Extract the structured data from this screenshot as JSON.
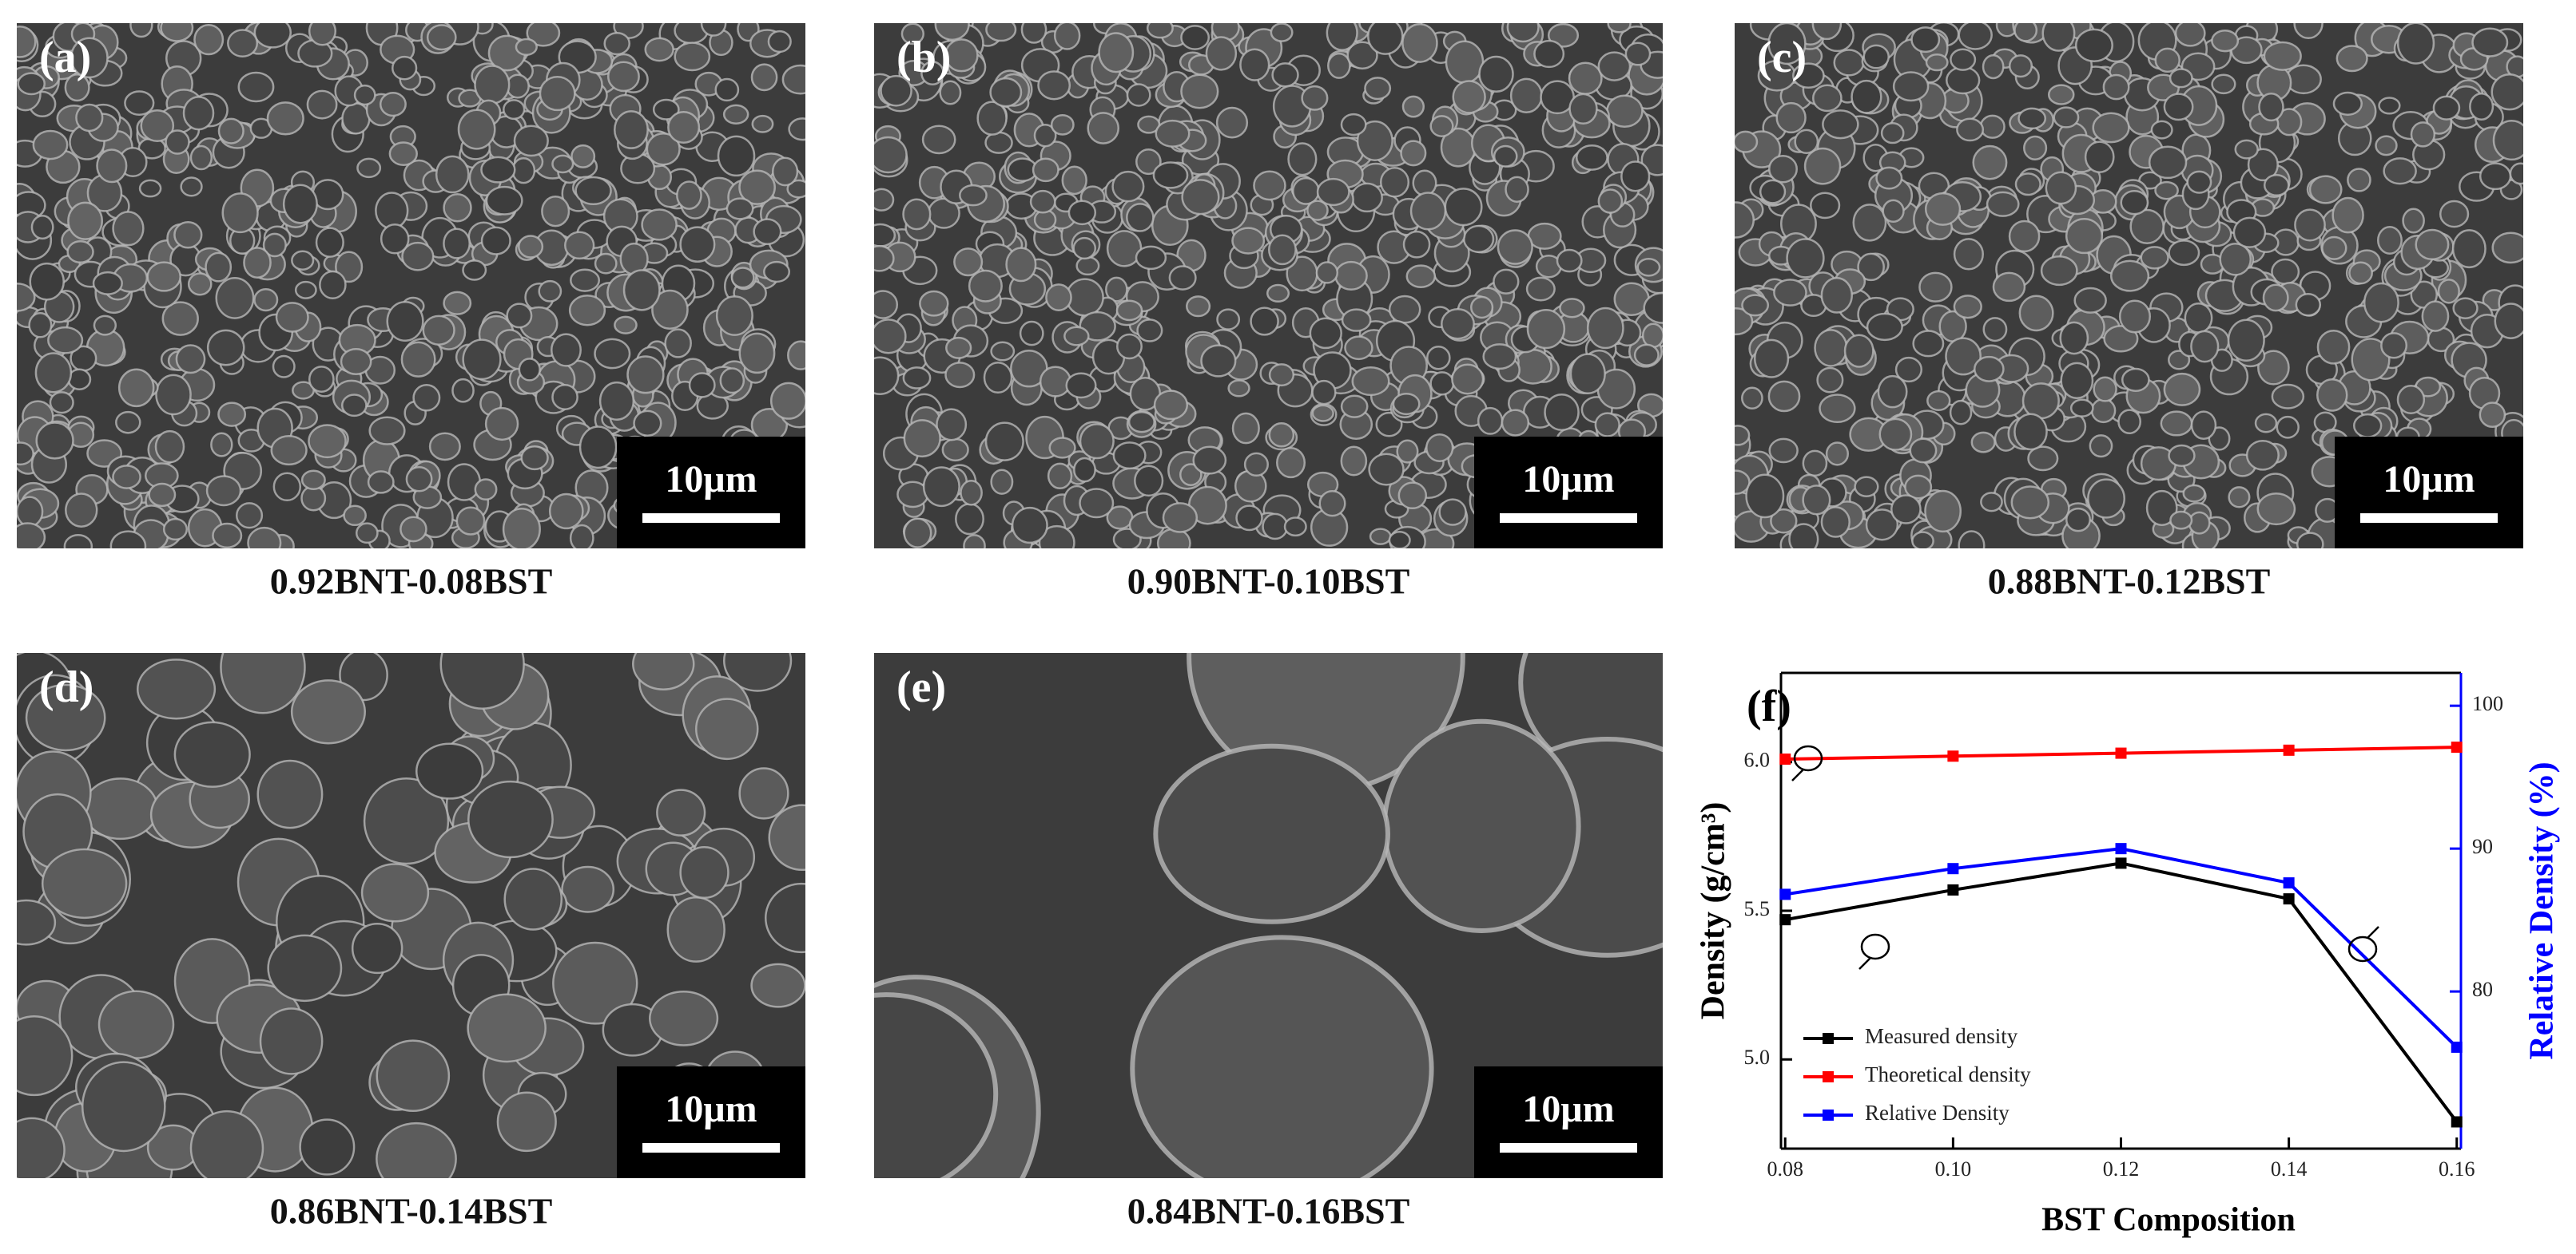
{
  "panels": [
    {
      "label": "(a)",
      "caption": "0.92BNT-0.08BST",
      "scale_bar": "10μm"
    },
    {
      "label": "(b)",
      "caption": "0.90BNT-0.10BST",
      "scale_bar": "10μm"
    },
    {
      "label": "(c)",
      "caption": "0.88BNT-0.12BST",
      "scale_bar": "10μm"
    },
    {
      "label": "(d)",
      "caption": "0.86BNT-0.14BST",
      "scale_bar": "10μm"
    },
    {
      "label": "(e)",
      "caption": "0.84BNT-0.16BST",
      "scale_bar": "10μm"
    }
  ],
  "chart_data": {
    "type": "line",
    "title": "(f)",
    "xlabel": "BST Composition",
    "ylabel": "Density (g/cm³)",
    "y2label": "Relative Density (%)",
    "x": [
      0.08,
      0.1,
      0.12,
      0.14,
      0.16
    ],
    "series": [
      {
        "name": "Measured density",
        "color": "#000000",
        "values": [
          5.47,
          5.57,
          5.66,
          5.54,
          4.79
        ]
      },
      {
        "name": "Theoretical density",
        "color": "#ff0000",
        "values": [
          6.01,
          6.02,
          6.03,
          6.04,
          6.05
        ]
      },
      {
        "name": "Relative Density",
        "color": "#0000ff",
        "axis": "y2",
        "values": [
          86.8,
          88.6,
          90.0,
          87.6,
          76.1
        ]
      }
    ],
    "xlim": [
      0.0795,
      0.1605
    ],
    "xticks": [
      {
        "value": 0.08,
        "label": "0.08"
      },
      {
        "value": 0.1,
        "label": "0.10"
      },
      {
        "value": 0.12,
        "label": "0.12"
      },
      {
        "value": 0.14,
        "label": "0.14"
      },
      {
        "value": 0.16,
        "label": "0.16"
      }
    ],
    "ylim": [
      4.7,
      6.3
    ],
    "yticks": [
      {
        "value": 5.0,
        "label": "5.0"
      },
      5.5,
      {
        "value": 6.0,
        "label": "6.0"
      }
    ],
    "y2lim": [
      69,
      102.3
    ],
    "y2ticks": [
      80,
      90,
      100
    ],
    "y2color": "#0000ff",
    "legend": "lower left"
  }
}
